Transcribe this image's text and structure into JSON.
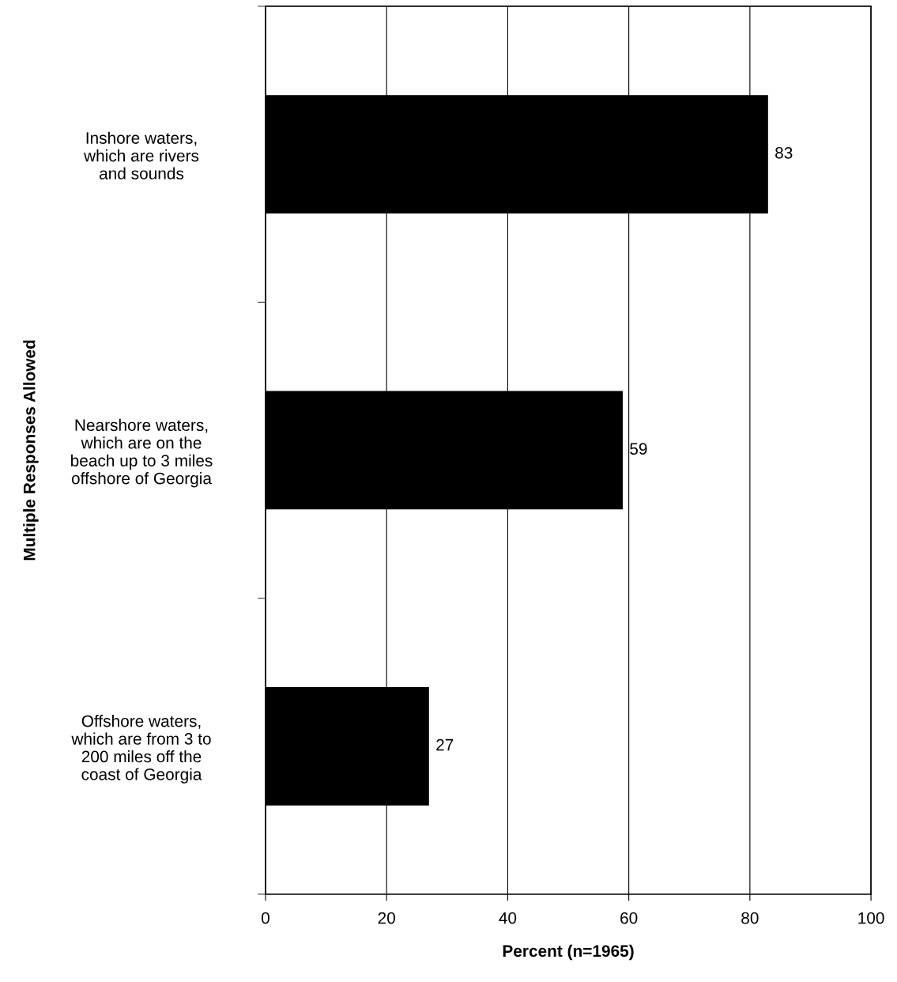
{
  "chart_data": {
    "type": "bar",
    "orientation": "horizontal",
    "xlabel": "Percent (n=1965)",
    "ylabel": "Multiple Responses Allowed",
    "categories": [
      "Inshore waters,\nwhich are rivers\nand sounds",
      "Nearshore waters,\nwhich are on the\nbeach up to 3 miles\noffshore of Georgia",
      "Offshore waters,\nwhich are from 3 to\n200 miles off the\ncoast of Georgia"
    ],
    "values": [
      83,
      59,
      27
    ],
    "color": "#000000",
    "data_labels": true,
    "xlim": [
      0,
      100
    ],
    "xticks": [
      0,
      20,
      40,
      60,
      80,
      100
    ],
    "grid": "x",
    "legend": false
  }
}
